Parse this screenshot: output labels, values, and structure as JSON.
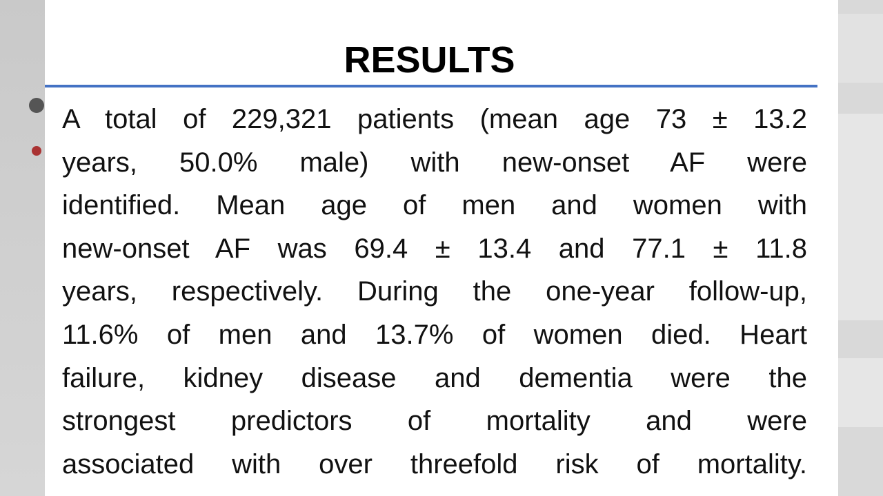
{
  "slide": {
    "title": "RESULTS",
    "lines": [
      "A total of 229,321 patients (mean age 73 ± 13.2",
      "years, 50.0% male) with new-onset AF were",
      "identified. Mean age of men and women with",
      "new-onset AF was 69.4 ± 13.4 and 77.1 ± 11.8",
      "years, respectively. During the one-year follow-up,",
      "11.6% of men and 13.7% of women died. Heart",
      "failure, kidney disease and dementia were the",
      "strongest predictors of mortality and were",
      "associated with over threefold risk of mortality."
    ]
  }
}
